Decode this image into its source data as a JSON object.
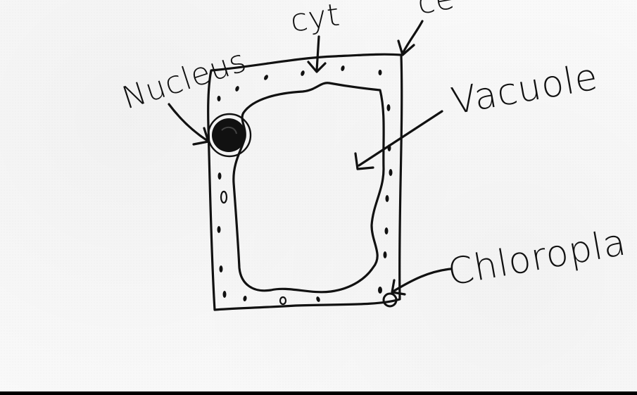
{
  "labels": {
    "nucleus": "Nucleus",
    "cytoplasm_partial": "cyt",
    "cell_wall_partial": "ce",
    "vacuole": "Vacuole",
    "chloroplast_partial": "Chloropla"
  },
  "colors": {
    "ink": "#111111",
    "paper": "#fafafa"
  }
}
